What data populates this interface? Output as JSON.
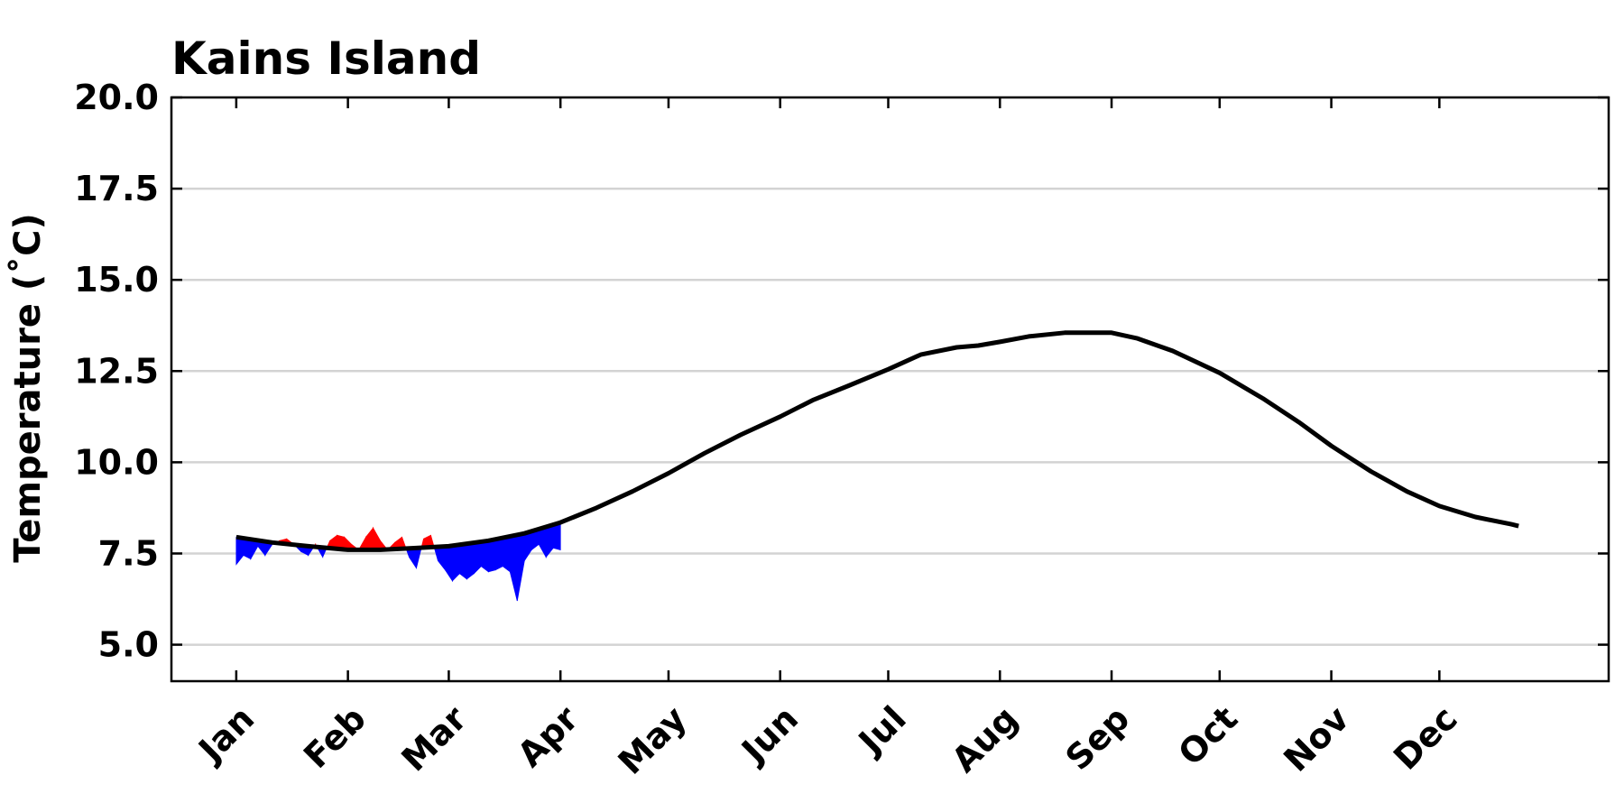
{
  "chart_data": {
    "type": "line",
    "title": "Kains Island",
    "xlabel": "",
    "ylabel": "Temperature ($^\\circ$C)",
    "ylabel_display": "Temperature (˚C)",
    "ylim": [
      4.0,
      20.0
    ],
    "yticks": [
      "5.0",
      "7.5",
      "10.0",
      "12.5",
      "15.0",
      "17.5",
      "20.0"
    ],
    "xlim": [
      -18,
      381
    ],
    "month_ticks": [
      {
        "label": "Jan",
        "day": 0
      },
      {
        "label": "Feb",
        "day": 31
      },
      {
        "label": "Mar",
        "day": 59
      },
      {
        "label": "Apr",
        "day": 90
      },
      {
        "label": "May",
        "day": 120
      },
      {
        "label": "Jun",
        "day": 151
      },
      {
        "label": "Jul",
        "day": 181
      },
      {
        "label": "Aug",
        "day": 212
      },
      {
        "label": "Sep",
        "day": 243
      },
      {
        "label": "Oct",
        "day": 273
      },
      {
        "label": "Nov",
        "day": 304
      },
      {
        "label": "Dec",
        "day": 334
      }
    ],
    "grid": true,
    "colors": {
      "climatology": "#000000",
      "above": "#ff0000",
      "below": "#0000ff",
      "grid": "#d3d3d3"
    },
    "climatology": {
      "x": [
        0,
        10,
        20,
        31,
        40,
        50,
        59,
        70,
        80,
        90,
        100,
        110,
        120,
        130,
        140,
        151,
        160,
        170,
        181,
        190,
        200,
        206,
        212,
        220,
        230,
        243,
        250,
        260,
        273,
        285,
        295,
        304,
        315,
        325,
        334,
        344,
        354,
        356
      ],
      "y": [
        7.95,
        7.8,
        7.7,
        7.6,
        7.6,
        7.65,
        7.7,
        7.85,
        8.05,
        8.35,
        8.75,
        9.2,
        9.7,
        10.25,
        10.75,
        11.25,
        11.7,
        12.1,
        12.55,
        12.95,
        13.15,
        13.2,
        13.3,
        13.45,
        13.55,
        13.55,
        13.4,
        13.05,
        12.45,
        11.75,
        11.1,
        10.45,
        9.75,
        9.2,
        8.8,
        8.5,
        8.3,
        8.25
      ]
    },
    "observed": {
      "x": [
        0,
        2,
        4,
        6,
        8,
        10,
        12,
        14,
        16,
        18,
        20,
        22,
        24,
        26,
        28,
        30,
        32,
        34,
        36,
        38,
        40,
        42,
        44,
        46,
        48,
        50,
        52,
        54,
        56,
        58,
        60,
        62,
        64,
        66,
        68,
        70,
        72,
        74,
        76,
        78,
        80,
        82,
        84,
        86,
        88,
        90
      ],
      "y": [
        7.2,
        7.45,
        7.35,
        7.7,
        7.45,
        7.75,
        7.85,
        7.9,
        7.75,
        7.55,
        7.45,
        7.75,
        7.4,
        7.85,
        8.0,
        7.95,
        7.75,
        7.6,
        7.95,
        8.2,
        7.85,
        7.6,
        7.8,
        7.95,
        7.4,
        7.1,
        7.9,
        8.0,
        7.3,
        7.05,
        6.75,
        6.95,
        6.8,
        6.95,
        7.15,
        7.0,
        7.05,
        7.15,
        7.0,
        6.2,
        7.3,
        7.6,
        7.75,
        7.4,
        7.65,
        7.6
      ]
    }
  }
}
